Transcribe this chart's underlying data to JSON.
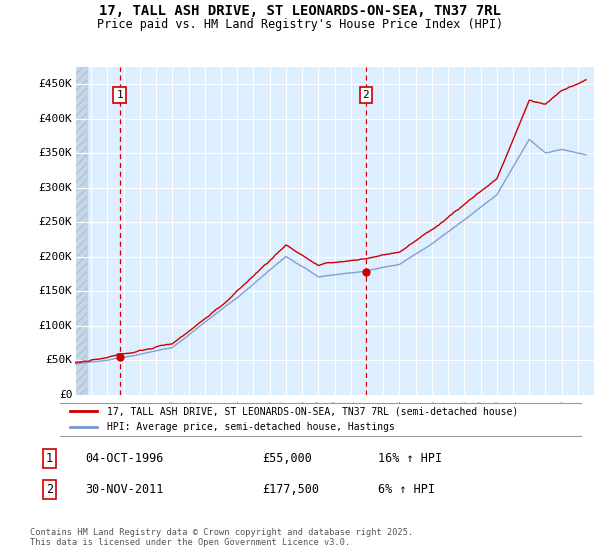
{
  "title_line1": "17, TALL ASH DRIVE, ST LEONARDS-ON-SEA, TN37 7RL",
  "title_line2": "Price paid vs. HM Land Registry's House Price Index (HPI)",
  "ylabel_ticks": [
    "£450K",
    "£400K",
    "£350K",
    "£300K",
    "£250K",
    "£200K",
    "£150K",
    "£100K",
    "£50K",
    "£0"
  ],
  "ytick_vals": [
    450000,
    400000,
    350000,
    300000,
    250000,
    200000,
    150000,
    100000,
    50000,
    0
  ],
  "ylim": [
    0,
    475000
  ],
  "xlim_start": 1994.0,
  "xlim_end": 2025.99,
  "purchase1_date": 1996.75,
  "purchase1_price": 55000,
  "purchase2_date": 2011.917,
  "purchase2_price": 177500,
  "legend_line1": "17, TALL ASH DRIVE, ST LEONARDS-ON-SEA, TN37 7RL (semi-detached house)",
  "legend_line2": "HPI: Average price, semi-detached house, Hastings",
  "annotation1_label": "1",
  "annotation1_date": "04-OCT-1996",
  "annotation1_price": "£55,000",
  "annotation1_hpi": "16% ↑ HPI",
  "annotation2_label": "2",
  "annotation2_date": "30-NOV-2011",
  "annotation2_price": "£177,500",
  "annotation2_hpi": "6% ↑ HPI",
  "footer": "Contains HM Land Registry data © Crown copyright and database right 2025.\nThis data is licensed under the Open Government Licence v3.0.",
  "line_color_red": "#cc0000",
  "line_color_blue": "#7799cc",
  "background_plot": "#ddeeff",
  "hatch_color": "#c8d8e8",
  "grid_color": "#ffffff",
  "annotation_box_color": "#cc0000"
}
